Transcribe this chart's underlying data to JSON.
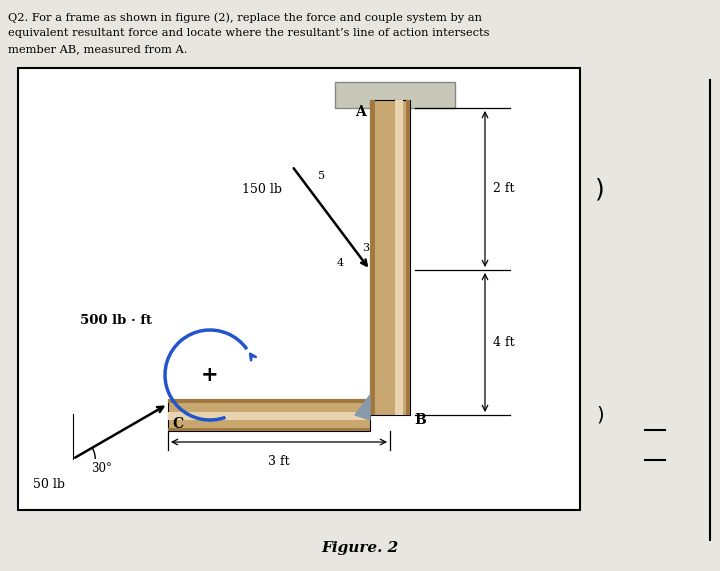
{
  "bg_color": "#e8e6e0",
  "frame_bg": "#ffffff",
  "beam_dark": "#a07840",
  "beam_mid": "#c8a870",
  "beam_light": "#d8bc90",
  "beam_highlight": "#e8d4b0",
  "cap_color": "#c8c8b8",
  "couple_color": "#2255cc",
  "title_lines": [
    "Q2. For a frame as shown in figure (2), replace the force and couple system by an",
    "equivalent resultant force and locate where the resultant’s line of action intersects",
    "member AB, measured from A."
  ],
  "figure_caption": "Figure. 2",
  "label_A": "A",
  "label_B": "B",
  "label_C": "C",
  "label_2ft": "2 ft",
  "label_4ft": "4 ft",
  "label_3ft": "3 ft",
  "label_150lb": "150 lb",
  "label_50lb": "50 lb",
  "label_500": "500 lb · ft",
  "label_30": "30°",
  "label_5": "5",
  "label_3": "3",
  "label_4": "4"
}
